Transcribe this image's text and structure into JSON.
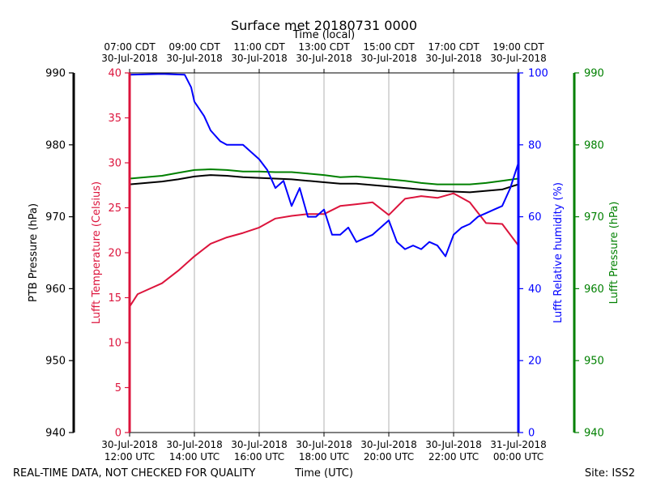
{
  "chart_data": {
    "type": "line",
    "title": "Surface met 20180731 0000",
    "top_axis_label": "Time (local)",
    "xlabel": "Time (UTC)",
    "footer_left": "REAL-TIME DATA, NOT CHECKED FOR QUALITY",
    "footer_right": "Site: ISS2",
    "x_range_utc_hours": [
      12,
      24
    ],
    "bottom_ticks": [
      {
        "hour": 12,
        "line1": "30-Jul-2018",
        "line2": "12:00 UTC"
      },
      {
        "hour": 14,
        "line1": "30-Jul-2018",
        "line2": "14:00 UTC"
      },
      {
        "hour": 16,
        "line1": "30-Jul-2018",
        "line2": "16:00 UTC"
      },
      {
        "hour": 18,
        "line1": "30-Jul-2018",
        "line2": "18:00 UTC"
      },
      {
        "hour": 20,
        "line1": "30-Jul-2018",
        "line2": "20:00 UTC"
      },
      {
        "hour": 22,
        "line1": "30-Jul-2018",
        "line2": "22:00 UTC"
      },
      {
        "hour": 24,
        "line1": "31-Jul-2018",
        "line2": "00:00 UTC"
      }
    ],
    "top_ticks": [
      {
        "hour": 12,
        "line1": "07:00 CDT",
        "line2": "30-Jul-2018"
      },
      {
        "hour": 14,
        "line1": "09:00 CDT",
        "line2": "30-Jul-2018"
      },
      {
        "hour": 16,
        "line1": "11:00 CDT",
        "line2": "30-Jul-2018"
      },
      {
        "hour": 18,
        "line1": "13:00 CDT",
        "line2": "30-Jul-2018"
      },
      {
        "hour": 20,
        "line1": "15:00 CDT",
        "line2": "30-Jul-2018"
      },
      {
        "hour": 22,
        "line1": "17:00 CDT",
        "line2": "30-Jul-2018"
      },
      {
        "hour": 24,
        "line1": "19:00 CDT",
        "line2": "30-Jul-2018"
      }
    ],
    "gridlines_hours": [
      14,
      16,
      18,
      20,
      22
    ],
    "axes": [
      {
        "id": "ptb",
        "label": "PTB Pressure (hPa)",
        "color": "#000000",
        "range": [
          940,
          990
        ],
        "ticks": [
          940,
          950,
          960,
          970,
          980,
          990
        ]
      },
      {
        "id": "temp",
        "label": "Lufft Temperature (Celsius)",
        "color": "#dc143c",
        "range": [
          0,
          40
        ],
        "ticks": [
          0,
          5,
          10,
          15,
          20,
          25,
          30,
          35,
          40
        ]
      },
      {
        "id": "rh",
        "label": "Lufft Relative humidity (%)",
        "color": "#0000ff",
        "range": [
          0,
          100
        ],
        "ticks": [
          0,
          20,
          40,
          60,
          80,
          100
        ]
      },
      {
        "id": "lp",
        "label": "Lufft Pressure (hPa)",
        "color": "#008000",
        "range": [
          940,
          990
        ],
        "ticks": [
          940,
          950,
          960,
          970,
          980,
          990
        ]
      }
    ],
    "series": [
      {
        "name": "PTB Pressure",
        "axis": "ptb",
        "color": "#000000",
        "x": [
          12.0,
          12.5,
          13.0,
          13.5,
          14.0,
          14.5,
          15.0,
          15.5,
          16.0,
          16.5,
          17.0,
          17.5,
          18.0,
          18.5,
          19.0,
          19.5,
          20.0,
          20.5,
          21.0,
          21.5,
          22.0,
          22.5,
          23.0,
          23.5,
          24.0
        ],
        "y": [
          974.5,
          974.7,
          974.9,
          975.2,
          975.6,
          975.8,
          975.7,
          975.5,
          975.4,
          975.3,
          975.2,
          975.0,
          974.8,
          974.6,
          974.6,
          974.4,
          974.2,
          974.0,
          973.8,
          973.6,
          973.5,
          973.4,
          973.6,
          973.8,
          974.5
        ]
      },
      {
        "name": "Lufft Pressure",
        "axis": "lp",
        "color": "#008000",
        "x": [
          12.0,
          12.5,
          13.0,
          13.5,
          14.0,
          14.5,
          15.0,
          15.5,
          16.0,
          16.5,
          17.0,
          17.5,
          18.0,
          18.5,
          19.0,
          19.5,
          20.0,
          20.5,
          21.0,
          21.5,
          22.0,
          22.5,
          23.0,
          23.5,
          24.0
        ],
        "y": [
          975.3,
          975.5,
          975.7,
          976.1,
          976.5,
          976.6,
          976.5,
          976.3,
          976.3,
          976.2,
          976.2,
          976.0,
          975.8,
          975.5,
          975.6,
          975.4,
          975.2,
          975.0,
          974.7,
          974.5,
          974.5,
          974.5,
          974.7,
          975.0,
          975.3
        ]
      },
      {
        "name": "Lufft Temperature",
        "axis": "temp",
        "color": "#dc143c",
        "x": [
          12.0,
          12.25,
          12.5,
          13.0,
          13.5,
          14.0,
          14.5,
          15.0,
          15.5,
          16.0,
          16.5,
          17.0,
          17.5,
          18.0,
          18.5,
          19.0,
          19.5,
          20.0,
          20.5,
          21.0,
          21.5,
          22.0,
          22.5,
          23.0,
          23.5,
          24.0
        ],
        "y": [
          14.0,
          15.4,
          15.8,
          16.6,
          18.0,
          19.6,
          21.0,
          21.7,
          22.2,
          22.8,
          23.8,
          24.1,
          24.3,
          24.3,
          25.2,
          25.4,
          25.6,
          24.2,
          26.0,
          26.3,
          26.1,
          26.6,
          25.6,
          23.3,
          23.2,
          20.8
        ]
      },
      {
        "name": "Lufft Relative humidity",
        "axis": "rh",
        "color": "#0000ff",
        "x": [
          12.0,
          13.0,
          13.7,
          13.9,
          14.0,
          14.3,
          14.5,
          14.8,
          15.0,
          15.5,
          16.0,
          16.25,
          16.5,
          16.75,
          17.0,
          17.25,
          17.5,
          17.75,
          18.0,
          18.25,
          18.5,
          18.75,
          19.0,
          19.25,
          19.5,
          19.75,
          20.0,
          20.25,
          20.5,
          20.75,
          21.0,
          21.25,
          21.5,
          21.75,
          22.0,
          22.25,
          22.5,
          22.75,
          23.0,
          23.25,
          23.5,
          23.75,
          24.0
        ],
        "y": [
          99.5,
          99.7,
          99.5,
          96.0,
          92.0,
          88.0,
          84.0,
          81.0,
          80.0,
          80.0,
          76.0,
          73.0,
          68.0,
          70.0,
          63.0,
          68.0,
          60.0,
          60.0,
          62.0,
          55.0,
          55.0,
          57.0,
          53.0,
          54.0,
          55.0,
          57.0,
          59.0,
          53.0,
          51.0,
          52.0,
          51.0,
          53.0,
          52.0,
          49.0,
          55.0,
          57.0,
          58.0,
          60.0,
          61.0,
          62.0,
          63.0,
          68.0,
          75.0
        ]
      }
    ]
  }
}
